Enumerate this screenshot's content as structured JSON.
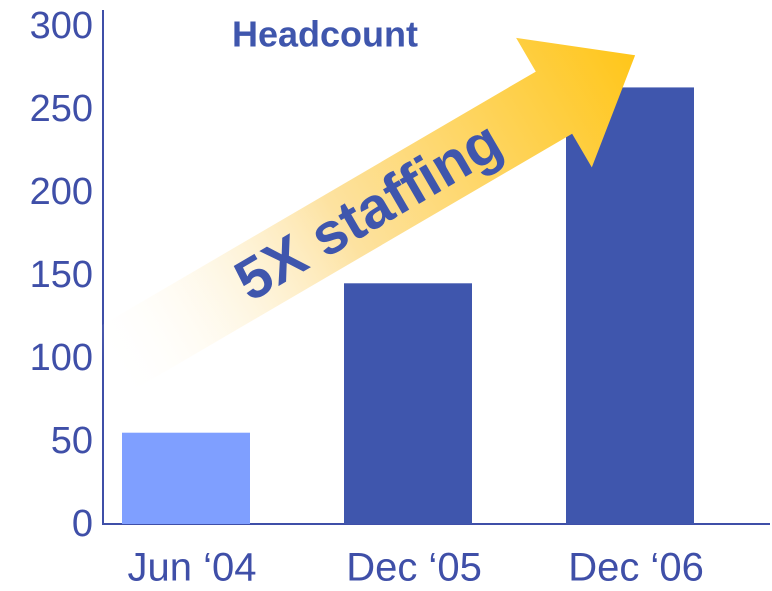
{
  "chart_data": {
    "type": "bar",
    "title": "Headcount",
    "annotation": "5X staffing",
    "categories": [
      "Jun ‘04",
      "Dec ‘05",
      "Dec ‘06"
    ],
    "values": [
      55,
      145,
      263
    ],
    "colors": [
      "#7f9fff",
      "#3f56ad",
      "#3f56ad"
    ],
    "ylim": [
      0,
      300
    ],
    "yticks": [
      0,
      50,
      100,
      150,
      200,
      250,
      300
    ],
    "grid": false
  }
}
